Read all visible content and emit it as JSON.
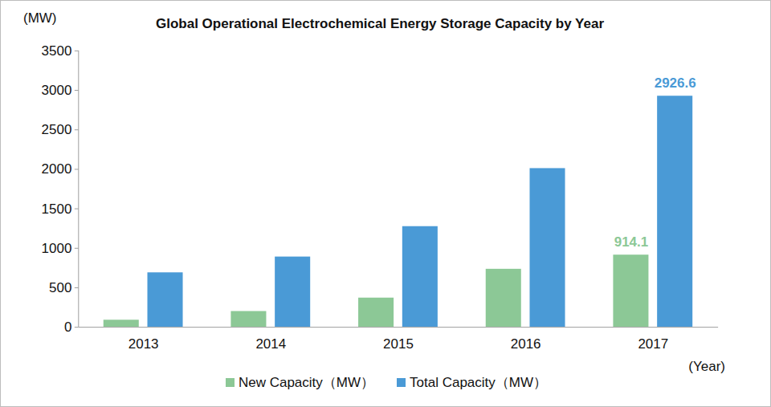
{
  "chart_data": {
    "type": "bar",
    "title": "Global Operational Electrochemical Energy Storage Capacity by Year",
    "x_label": "(Year)",
    "y_label": "(MW)",
    "categories": [
      "2013",
      "2014",
      "2015",
      "2016",
      "2017"
    ],
    "series": [
      {
        "name": "New Capacity（MW）",
        "color": "#8cc896",
        "values": [
          90,
          200,
          370,
          735,
          914.1
        ],
        "value_labels": [
          null,
          null,
          null,
          null,
          "914.1"
        ]
      },
      {
        "name": "Total Capacity（MW）",
        "color": "#4a9ad6",
        "values": [
          690,
          890,
          1275,
          2010,
          2926.6
        ],
        "value_labels": [
          null,
          null,
          null,
          null,
          "2926.6"
        ]
      }
    ],
    "ylim": [
      0,
      3500
    ],
    "yticks": [
      0,
      500,
      1000,
      1500,
      2000,
      2500,
      3000,
      3500
    ],
    "grid": false,
    "legend": "bottom",
    "data_labels": true
  }
}
